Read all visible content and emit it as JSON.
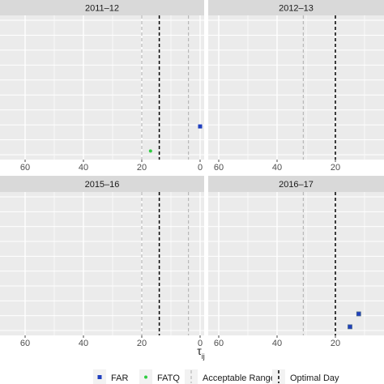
{
  "chart_data": {
    "type": "scatter",
    "xlabel": "τ_ij",
    "x_reversed": true,
    "xlim": [
      67,
      0
    ],
    "x_ticks": [
      60,
      40,
      20,
      0
    ],
    "grid": true,
    "legend_position": "bottom",
    "series": [
      {
        "name": "FAR",
        "color": "#1f3fbf",
        "marker": "square"
      },
      {
        "name": "FATQ",
        "color": "#2ecc40",
        "marker": "circle"
      }
    ],
    "reference_lines": [
      {
        "name": "Acceptable Range",
        "style": "dashed",
        "color": "#b8b8b8"
      },
      {
        "name": "Optimal Day",
        "style": "dashed",
        "color": "#000000"
      }
    ],
    "panels": [
      {
        "title": "2011–12",
        "optimal_day": 14,
        "acceptable_range": [
          20,
          4
        ],
        "points": [
          {
            "series": "FAR",
            "x": 0,
            "y": 0.23
          },
          {
            "series": "FATQ",
            "x": 17,
            "y": 0.06
          }
        ]
      },
      {
        "title": "2012–13",
        "optimal_day": 20,
        "acceptable_range": [
          31
        ],
        "points": []
      },
      {
        "title": "2015–16",
        "optimal_day": 14,
        "acceptable_range": [
          20,
          4
        ],
        "points": []
      },
      {
        "title": "2016–17",
        "optimal_day": 20,
        "acceptable_range": [
          31
        ],
        "points": [
          {
            "series": "FAR",
            "x": 15,
            "y": 0.06
          },
          {
            "series": "FAR",
            "x": 12,
            "y": 0.15
          }
        ]
      }
    ]
  }
}
